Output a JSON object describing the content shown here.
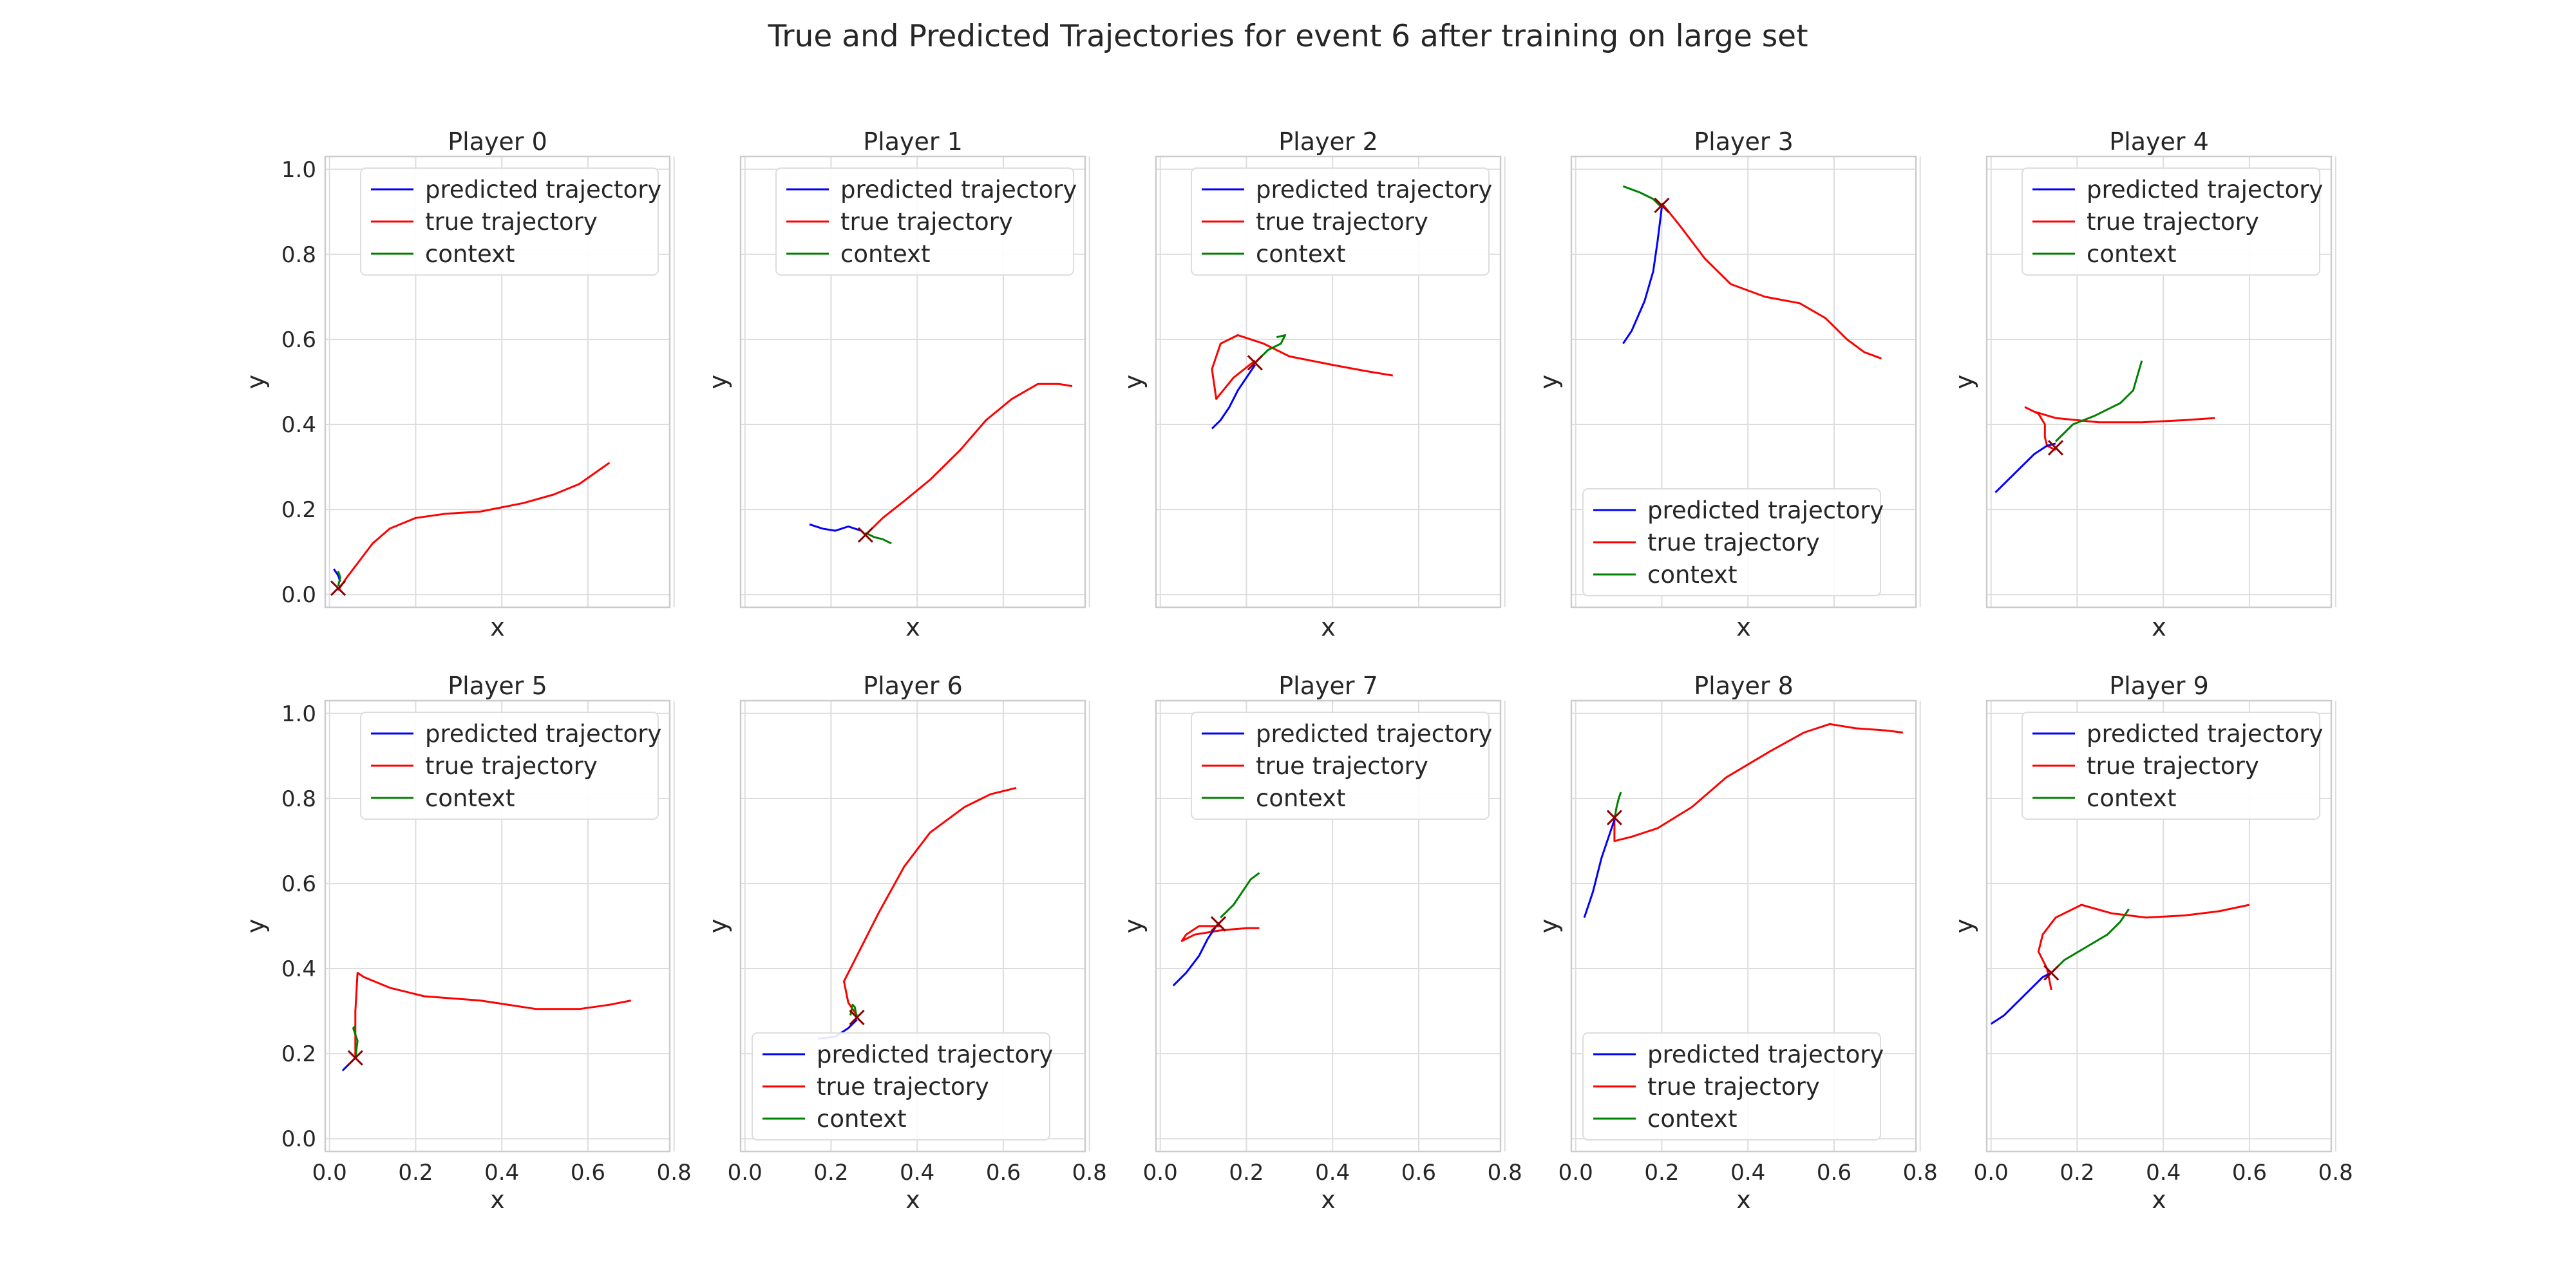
{
  "figure": {
    "title": "True and Predicted Trajectories for event 6 after training on large set"
  },
  "chart_data": {
    "type": "line",
    "xlabel": "x",
    "ylabel": "y",
    "xlim": [
      -0.01,
      0.79
    ],
    "ylim": [
      -0.03,
      1.03
    ],
    "xticks": [
      "0.0",
      "0.2",
      "0.4",
      "0.6",
      "0.8"
    ],
    "yticks": [
      "0.0",
      "0.2",
      "0.4",
      "0.6",
      "0.8",
      "1.0"
    ],
    "grid": true,
    "legend_labels": [
      "predicted trajectory",
      "true trajectory",
      "context"
    ],
    "colors": {
      "predicted": "#0000ff",
      "true": "#ff0000",
      "context": "#008000",
      "marker": "#8b0000"
    },
    "panels": [
      {
        "title": "Player 0",
        "legend": "upper-right",
        "predicted": [
          [
            0.01,
            0.06
          ],
          [
            0.02,
            0.045
          ],
          [
            0.025,
            0.03
          ]
        ],
        "true": [
          [
            0.02,
            0.01
          ],
          [
            0.04,
            0.04
          ],
          [
            0.07,
            0.08
          ],
          [
            0.1,
            0.12
          ],
          [
            0.14,
            0.155
          ],
          [
            0.2,
            0.18
          ],
          [
            0.27,
            0.19
          ],
          [
            0.35,
            0.195
          ],
          [
            0.45,
            0.215
          ],
          [
            0.52,
            0.235
          ],
          [
            0.58,
            0.26
          ],
          [
            0.65,
            0.31
          ]
        ],
        "context": [
          [
            0.02,
            0.02
          ],
          [
            0.025,
            0.04
          ],
          [
            0.02,
            0.055
          ]
        ],
        "marker": [
          0.02,
          0.015
        ]
      },
      {
        "title": "Player 1",
        "legend": "upper-right",
        "predicted": [
          [
            0.15,
            0.165
          ],
          [
            0.18,
            0.155
          ],
          [
            0.21,
            0.15
          ],
          [
            0.24,
            0.16
          ],
          [
            0.27,
            0.15
          ],
          [
            0.28,
            0.14
          ]
        ],
        "true": [
          [
            0.28,
            0.14
          ],
          [
            0.32,
            0.18
          ],
          [
            0.37,
            0.22
          ],
          [
            0.43,
            0.27
          ],
          [
            0.5,
            0.34
          ],
          [
            0.56,
            0.41
          ],
          [
            0.62,
            0.46
          ],
          [
            0.68,
            0.495
          ],
          [
            0.73,
            0.495
          ],
          [
            0.76,
            0.49
          ]
        ],
        "context": [
          [
            0.28,
            0.145
          ],
          [
            0.3,
            0.135
          ],
          [
            0.32,
            0.13
          ],
          [
            0.34,
            0.12
          ]
        ],
        "marker": [
          0.28,
          0.14
        ]
      },
      {
        "title": "Player 2",
        "legend": "upper-right",
        "predicted": [
          [
            0.12,
            0.39
          ],
          [
            0.14,
            0.41
          ],
          [
            0.16,
            0.44
          ],
          [
            0.18,
            0.48
          ],
          [
            0.2,
            0.51
          ],
          [
            0.22,
            0.54
          ]
        ],
        "true": [
          [
            0.22,
            0.55
          ],
          [
            0.17,
            0.51
          ],
          [
            0.13,
            0.46
          ],
          [
            0.12,
            0.53
          ],
          [
            0.14,
            0.59
          ],
          [
            0.18,
            0.61
          ],
          [
            0.24,
            0.59
          ],
          [
            0.3,
            0.56
          ],
          [
            0.4,
            0.54
          ],
          [
            0.48,
            0.525
          ],
          [
            0.54,
            0.515
          ]
        ],
        "context": [
          [
            0.22,
            0.545
          ],
          [
            0.25,
            0.575
          ],
          [
            0.28,
            0.59
          ],
          [
            0.29,
            0.61
          ],
          [
            0.27,
            0.605
          ]
        ],
        "marker": [
          0.22,
          0.545
        ]
      },
      {
        "title": "Player 3",
        "legend": "lower-left",
        "predicted": [
          [
            0.11,
            0.59
          ],
          [
            0.13,
            0.62
          ],
          [
            0.16,
            0.69
          ],
          [
            0.18,
            0.76
          ],
          [
            0.19,
            0.83
          ],
          [
            0.2,
            0.91
          ]
        ],
        "true": [
          [
            0.2,
            0.92
          ],
          [
            0.24,
            0.87
          ],
          [
            0.3,
            0.79
          ],
          [
            0.36,
            0.73
          ],
          [
            0.44,
            0.7
          ],
          [
            0.52,
            0.685
          ],
          [
            0.58,
            0.65
          ],
          [
            0.63,
            0.6
          ],
          [
            0.67,
            0.57
          ],
          [
            0.71,
            0.555
          ]
        ],
        "context": [
          [
            0.11,
            0.96
          ],
          [
            0.15,
            0.945
          ],
          [
            0.18,
            0.93
          ],
          [
            0.2,
            0.91
          ]
        ],
        "marker": [
          0.2,
          0.915
        ]
      },
      {
        "title": "Player 4",
        "legend": "upper-right",
        "predicted": [
          [
            0.01,
            0.24
          ],
          [
            0.04,
            0.27
          ],
          [
            0.07,
            0.3
          ],
          [
            0.1,
            0.33
          ],
          [
            0.13,
            0.35
          ],
          [
            0.15,
            0.355
          ]
        ],
        "true": [
          [
            0.15,
            0.34
          ],
          [
            0.13,
            0.35
          ],
          [
            0.125,
            0.37
          ],
          [
            0.125,
            0.4
          ],
          [
            0.11,
            0.425
          ],
          [
            0.08,
            0.44
          ],
          [
            0.1,
            0.43
          ],
          [
            0.15,
            0.415
          ],
          [
            0.25,
            0.405
          ],
          [
            0.35,
            0.405
          ],
          [
            0.45,
            0.41
          ],
          [
            0.52,
            0.415
          ]
        ],
        "context": [
          [
            0.15,
            0.36
          ],
          [
            0.19,
            0.4
          ],
          [
            0.24,
            0.42
          ],
          [
            0.3,
            0.45
          ],
          [
            0.33,
            0.48
          ],
          [
            0.35,
            0.55
          ]
        ],
        "marker": [
          0.15,
          0.345
        ]
      },
      {
        "title": "Player 5",
        "legend": "upper-right",
        "predicted": [
          [
            0.03,
            0.16
          ],
          [
            0.04,
            0.17
          ],
          [
            0.05,
            0.18
          ],
          [
            0.06,
            0.19
          ]
        ],
        "true": [
          [
            0.06,
            0.19
          ],
          [
            0.06,
            0.3
          ],
          [
            0.065,
            0.39
          ],
          [
            0.08,
            0.38
          ],
          [
            0.14,
            0.355
          ],
          [
            0.22,
            0.335
          ],
          [
            0.35,
            0.325
          ],
          [
            0.48,
            0.305
          ],
          [
            0.58,
            0.305
          ],
          [
            0.65,
            0.315
          ],
          [
            0.7,
            0.325
          ]
        ],
        "context": [
          [
            0.06,
            0.19
          ],
          [
            0.065,
            0.23
          ],
          [
            0.055,
            0.26
          ],
          [
            0.06,
            0.265
          ]
        ],
        "marker": [
          0.06,
          0.19
        ]
      },
      {
        "title": "Player 6",
        "legend": "lower-left",
        "predicted": [
          [
            0.17,
            0.235
          ],
          [
            0.21,
            0.24
          ],
          [
            0.24,
            0.26
          ],
          [
            0.26,
            0.28
          ]
        ],
        "true": [
          [
            0.26,
            0.29
          ],
          [
            0.24,
            0.32
          ],
          [
            0.23,
            0.37
          ],
          [
            0.26,
            0.43
          ],
          [
            0.31,
            0.53
          ],
          [
            0.37,
            0.64
          ],
          [
            0.43,
            0.72
          ],
          [
            0.51,
            0.78
          ],
          [
            0.57,
            0.81
          ],
          [
            0.63,
            0.825
          ]
        ],
        "context": [
          [
            0.26,
            0.285
          ],
          [
            0.255,
            0.31
          ],
          [
            0.25,
            0.315
          ],
          [
            0.245,
            0.29
          ]
        ],
        "marker": [
          0.26,
          0.285
        ]
      },
      {
        "title": "Player 7",
        "legend": "upper-right",
        "predicted": [
          [
            0.03,
            0.36
          ],
          [
            0.06,
            0.39
          ],
          [
            0.09,
            0.43
          ],
          [
            0.11,
            0.47
          ],
          [
            0.13,
            0.5
          ],
          [
            0.14,
            0.51
          ]
        ],
        "true": [
          [
            0.14,
            0.5
          ],
          [
            0.09,
            0.5
          ],
          [
            0.06,
            0.48
          ],
          [
            0.05,
            0.465
          ],
          [
            0.08,
            0.48
          ],
          [
            0.14,
            0.49
          ],
          [
            0.2,
            0.495
          ],
          [
            0.23,
            0.495
          ]
        ],
        "context": [
          [
            0.14,
            0.52
          ],
          [
            0.17,
            0.55
          ],
          [
            0.19,
            0.58
          ],
          [
            0.21,
            0.61
          ],
          [
            0.23,
            0.625
          ]
        ],
        "marker": [
          0.135,
          0.505
        ]
      },
      {
        "title": "Player 8",
        "legend": "lower-left",
        "predicted": [
          [
            0.02,
            0.52
          ],
          [
            0.04,
            0.58
          ],
          [
            0.06,
            0.66
          ],
          [
            0.08,
            0.72
          ],
          [
            0.09,
            0.75
          ]
        ],
        "true": [
          [
            0.09,
            0.76
          ],
          [
            0.09,
            0.7
          ],
          [
            0.13,
            0.71
          ],
          [
            0.19,
            0.73
          ],
          [
            0.27,
            0.78
          ],
          [
            0.35,
            0.85
          ],
          [
            0.45,
            0.91
          ],
          [
            0.53,
            0.955
          ],
          [
            0.59,
            0.975
          ],
          [
            0.65,
            0.965
          ],
          [
            0.72,
            0.96
          ],
          [
            0.76,
            0.955
          ]
        ],
        "context": [
          [
            0.09,
            0.75
          ],
          [
            0.095,
            0.78
          ],
          [
            0.1,
            0.8
          ],
          [
            0.105,
            0.815
          ]
        ],
        "marker": [
          0.09,
          0.755
        ]
      },
      {
        "title": "Player 9",
        "legend": "upper-right",
        "predicted": [
          [
            0.0,
            0.27
          ],
          [
            0.03,
            0.29
          ],
          [
            0.06,
            0.32
          ],
          [
            0.09,
            0.35
          ],
          [
            0.12,
            0.38
          ],
          [
            0.14,
            0.39
          ]
        ],
        "true": [
          [
            0.14,
            0.35
          ],
          [
            0.13,
            0.4
          ],
          [
            0.11,
            0.44
          ],
          [
            0.12,
            0.48
          ],
          [
            0.15,
            0.52
          ],
          [
            0.21,
            0.55
          ],
          [
            0.28,
            0.53
          ],
          [
            0.36,
            0.52
          ],
          [
            0.45,
            0.525
          ],
          [
            0.53,
            0.535
          ],
          [
            0.6,
            0.55
          ]
        ],
        "context": [
          [
            0.14,
            0.39
          ],
          [
            0.17,
            0.42
          ],
          [
            0.22,
            0.45
          ],
          [
            0.27,
            0.48
          ],
          [
            0.3,
            0.51
          ],
          [
            0.32,
            0.54
          ]
        ],
        "marker": [
          0.14,
          0.39
        ]
      }
    ]
  }
}
